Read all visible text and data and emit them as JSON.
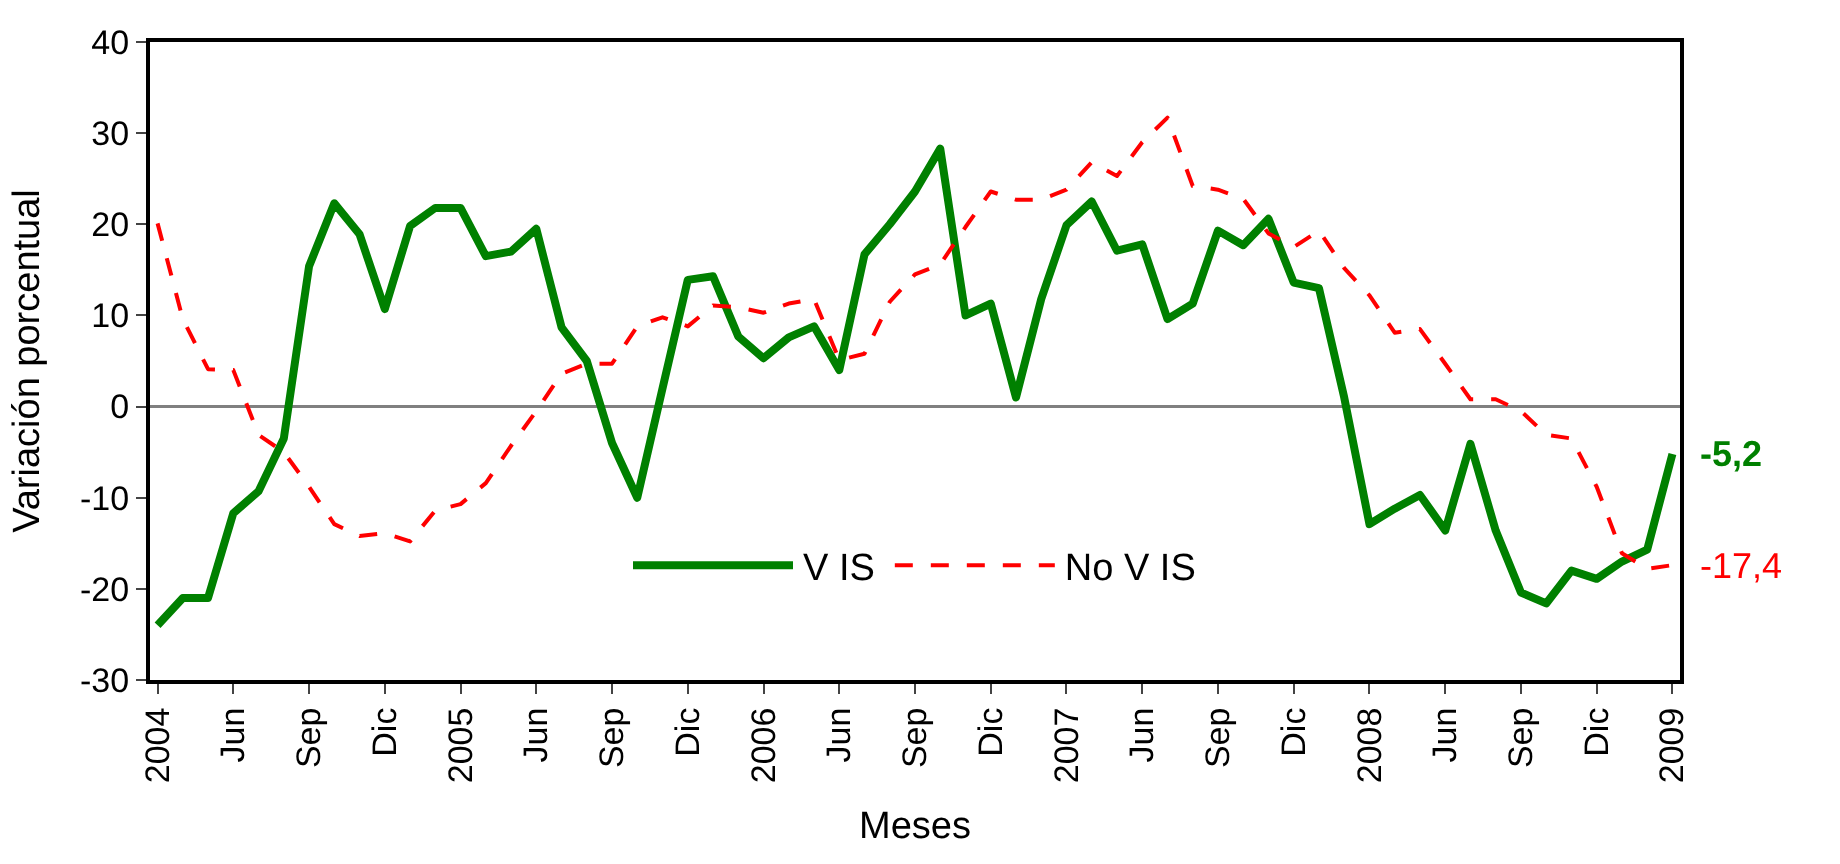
{
  "chart_data": {
    "type": "line",
    "xlabel": "Meses",
    "ylabel": "Variación porcentual",
    "categories": [
      "2004",
      null,
      null,
      "Jun",
      null,
      null,
      "Sep",
      null,
      null,
      "Dic",
      null,
      null,
      "2005",
      null,
      null,
      "Jun",
      null,
      null,
      "Sep",
      null,
      null,
      "Dic",
      null,
      null,
      "2006",
      null,
      null,
      "Jun",
      null,
      null,
      "Sep",
      null,
      null,
      "Dic",
      null,
      null,
      "2007",
      null,
      null,
      "Jun",
      null,
      null,
      "Sep",
      null,
      null,
      "Dic",
      null,
      null,
      "2008",
      null,
      null,
      "Jun",
      null,
      null,
      "Sep",
      null,
      null,
      "Dic",
      null,
      null,
      "2009"
    ],
    "series": [
      {
        "name": "V IS",
        "color": "#008000",
        "line_style": "solid",
        "values": [
          -24,
          -21,
          -21,
          -11.7,
          -9.3,
          -3.5,
          15.4,
          22.3,
          18.9,
          10.7,
          19.8,
          21.8,
          21.8,
          16.5,
          17,
          19.5,
          8.7,
          5,
          -4,
          -10,
          2,
          13.9,
          14.3,
          7.7,
          5.3,
          7.6,
          8.8,
          4,
          16.7,
          20,
          23.6,
          28.3,
          10,
          11.3,
          1,
          11.8,
          19.9,
          22.5,
          17.1,
          17.8,
          9.6,
          11.3,
          19.3,
          17.7,
          20.6,
          13.6,
          13,
          1,
          -12.9,
          -11.2,
          -9.7,
          -13.6,
          -4.1,
          -13.6,
          -20.4,
          -21.6,
          -18,
          -18.9,
          -17,
          -15.7,
          -5.2
        ]
      },
      {
        "name": "No V IS",
        "color": "#ff0000",
        "line_style": "dashed",
        "values": [
          20.1,
          9.6,
          4.1,
          4,
          -3.1,
          -5,
          -8.8,
          -12.9,
          -14.2,
          -13.9,
          -14.8,
          -11.4,
          -10.7,
          -8.4,
          -4.3,
          -0.5,
          3.6,
          4.7,
          4.7,
          8.8,
          9.8,
          8.8,
          11.1,
          10.9,
          10.3,
          11.3,
          11.8,
          5.1,
          5.8,
          11.5,
          14.5,
          15.6,
          19.7,
          23.6,
          22.7,
          22.7,
          23.8,
          26.8,
          25.3,
          29,
          31.7,
          24.2,
          23.8,
          22.8,
          19,
          17.5,
          19.3,
          15.2,
          12.2,
          8.1,
          8.5,
          4.7,
          0.8,
          0.8,
          -0.5,
          -3.1,
          -3.5,
          -8.8,
          -16.1,
          -17.8,
          -17.4
        ]
      }
    ],
    "ylim": [
      -30,
      40
    ],
    "yticks": [
      -30,
      -20,
      -10,
      0,
      10,
      20,
      30,
      40
    ],
    "grid": false,
    "legend": "bottom",
    "ref_lines": [
      {
        "axis": "y",
        "value": 0,
        "color": "#808080"
      }
    ],
    "marker": "none",
    "annotations": [
      {
        "text": "-5,2",
        "x": "2009",
        "y": -5.2
      },
      {
        "text": "-17,4",
        "x": "2009",
        "y": -17.4
      }
    ]
  }
}
